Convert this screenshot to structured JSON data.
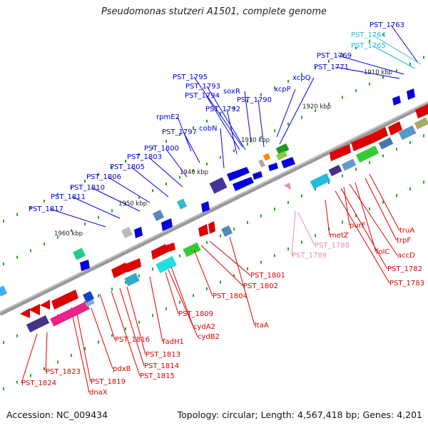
{
  "title": "Pseudomonas stutzeri A1501, complete genome",
  "footer": {
    "accession": "Accession: NC_009434",
    "topology": "Topology: circular; Length: 4,567,418 bp; Genes: 4,201"
  },
  "kbp_ticks": [
    "1910 kbp",
    "1920 kbp",
    "1930 kbp",
    "1940 kbp",
    "1950 kbp",
    "1960 kbp"
  ],
  "colors": {
    "forward": "#0000dd",
    "reverse": "#dd0000",
    "cyan_label": "#22bbdd",
    "pink_label": "#ee88bb",
    "backbone": "#888888"
  },
  "labels": {
    "blue": [
      "PST_1763",
      "PST_1769",
      "PST_1771",
      "xcpQ",
      "xcpP",
      "PST_1790",
      "soxR",
      "PST_1795",
      "PST_1793",
      "PST_1794",
      "PST_1792",
      "rpmE2",
      "cobN",
      "PST_1797",
      "PST_1800",
      "PST_1803",
      "PST_1805",
      "PST_1806",
      "PST_1810",
      "PST_1811",
      "PST_1817"
    ],
    "cyan": [
      "PST_1764",
      "PST_1765"
    ],
    "pink": [
      "PST_1788",
      "PST_1789"
    ],
    "red": [
      "truA",
      "trpF",
      "folC",
      "accD",
      "purF",
      "metZ",
      "PST_1782",
      "PST_1783",
      "ltaA",
      "PST_1801",
      "PST_1802",
      "PST_1804",
      "PST_1809",
      "cydA2",
      "cydB2",
      "fadH1",
      "PST_1816",
      "PST_1813",
      "PST_1814",
      "PST_1815",
      "pdxB",
      "PST_1819",
      "dnaX",
      "PST_1823",
      "PST_1824"
    ]
  }
}
